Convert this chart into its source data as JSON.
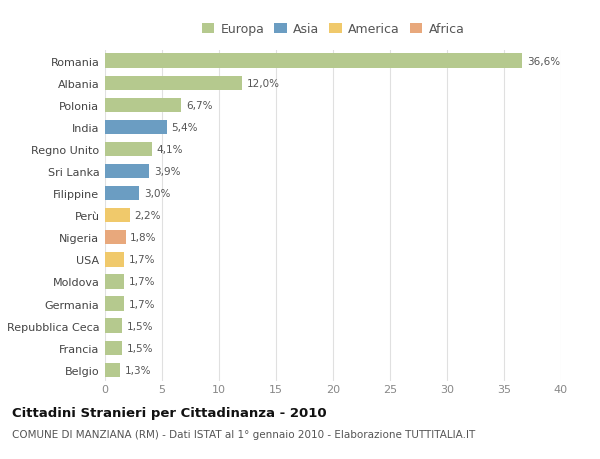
{
  "countries": [
    "Romania",
    "Albania",
    "Polonia",
    "India",
    "Regno Unito",
    "Sri Lanka",
    "Filippine",
    "Perù",
    "Nigeria",
    "USA",
    "Moldova",
    "Germania",
    "Repubblica Ceca",
    "Francia",
    "Belgio"
  ],
  "values": [
    36.6,
    12.0,
    6.7,
    5.4,
    4.1,
    3.9,
    3.0,
    2.2,
    1.8,
    1.7,
    1.7,
    1.7,
    1.5,
    1.5,
    1.3
  ],
  "labels": [
    "36,6%",
    "12,0%",
    "6,7%",
    "5,4%",
    "4,1%",
    "3,9%",
    "3,0%",
    "2,2%",
    "1,8%",
    "1,7%",
    "1,7%",
    "1,7%",
    "1,5%",
    "1,5%",
    "1,3%"
  ],
  "continents": [
    "Europa",
    "Europa",
    "Europa",
    "Asia",
    "Europa",
    "Asia",
    "Asia",
    "America",
    "Africa",
    "America",
    "Europa",
    "Europa",
    "Europa",
    "Europa",
    "Europa"
  ],
  "continent_colors": {
    "Europa": "#b5c98e",
    "Asia": "#6b9dc2",
    "America": "#f0c96b",
    "Africa": "#e8a87c"
  },
  "legend_order": [
    "Europa",
    "Asia",
    "America",
    "Africa"
  ],
  "title": "Cittadini Stranieri per Cittadinanza - 2010",
  "subtitle": "COMUNE DI MANZIANA (RM) - Dati ISTAT al 1° gennaio 2010 - Elaborazione TUTTITALIA.IT",
  "xlim": [
    0,
    40
  ],
  "xticks": [
    0,
    5,
    10,
    15,
    20,
    25,
    30,
    35,
    40
  ],
  "background_color": "#ffffff",
  "grid_color": "#e0e0e0"
}
